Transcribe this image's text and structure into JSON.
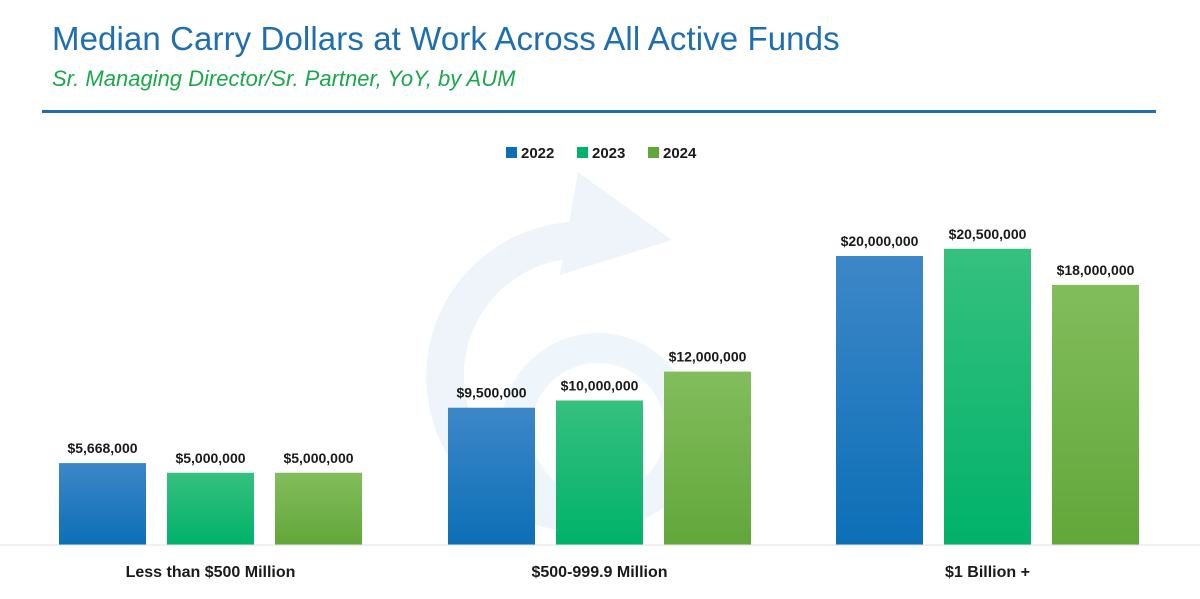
{
  "title": "Median Carry Dollars at Work Across All Active Funds",
  "subtitle": "Sr. Managing Director/Sr. Partner, YoY, by AUM",
  "chart_data": {
    "type": "bar",
    "title": "Median Carry Dollars at Work Across All Active Funds",
    "subtitle": "Sr. Managing Director/Sr. Partner, YoY, by AUM",
    "categories": [
      "Less than $500 Million",
      "$500-999.9 Million",
      "$1 Billion +"
    ],
    "series": [
      {
        "name": "2022",
        "values": [
          5668000,
          9500000,
          20000000
        ],
        "labels": [
          "$5,668,000",
          "$9,500,000",
          "$20,000,000"
        ],
        "color_top": "#3d87c8",
        "color_bottom": "#0c6fb6"
      },
      {
        "name": "2023",
        "values": [
          5000000,
          10000000,
          20500000
        ],
        "labels": [
          "$5,000,000",
          "$10,000,000",
          "$20,500,000"
        ],
        "color_top": "#36c07f",
        "color_bottom": "#00b26a"
      },
      {
        "name": "2024",
        "values": [
          5000000,
          12000000,
          18000000
        ],
        "labels": [
          "$5,000,000",
          "$12,000,000",
          "$18,000,000"
        ],
        "color_top": "#82bd5c",
        "color_bottom": "#62a73a"
      }
    ],
    "xlabel": "",
    "ylabel": "",
    "ylim": [
      0,
      22000000
    ],
    "grid": false,
    "legend": "top-center"
  }
}
